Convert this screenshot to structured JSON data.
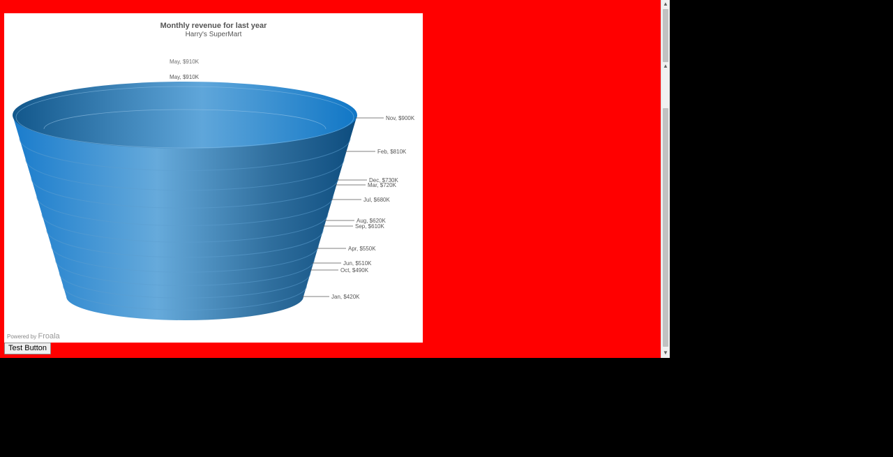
{
  "chart_data": {
    "type": "funnel",
    "title": "Monthly revenue for last year",
    "subtitle": "Harry's SuperMart",
    "unit_prefix": "$",
    "unit_suffix": "K",
    "series": [
      {
        "label": "May",
        "value": 910
      },
      {
        "label": "Nov",
        "value": 900
      },
      {
        "label": "Feb",
        "value": 810
      },
      {
        "label": "Dec",
        "value": 730
      },
      {
        "label": "Mar",
        "value": 720
      },
      {
        "label": "Jul",
        "value": 680
      },
      {
        "label": "Aug",
        "value": 620
      },
      {
        "label": "Sep",
        "value": 610
      },
      {
        "label": "Apr",
        "value": 550
      },
      {
        "label": "Jun",
        "value": 510
      },
      {
        "label": "Oct",
        "value": 490
      },
      {
        "label": "Jan",
        "value": 420
      }
    ],
    "colors": {
      "base": "#1a7fcb",
      "highlight": "#66aadb",
      "dark": "#0e4d80"
    }
  },
  "footer": {
    "powered_prefix": "Powered by",
    "powered_brand": "Froala"
  },
  "button": {
    "label": "Test Button"
  }
}
